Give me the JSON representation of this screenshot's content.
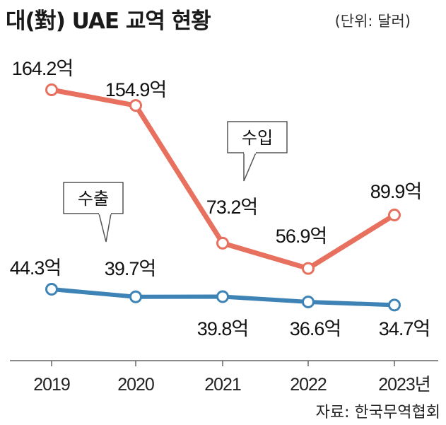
{
  "chart_data": {
    "type": "line",
    "title": "대(對) UAE 교역 현황",
    "unit": "(단위: 달러)",
    "source": "자료: 한국무역협회",
    "categories": [
      "2019",
      "2020",
      "2021",
      "2022",
      "2023년"
    ],
    "ylim": [
      0,
      180
    ],
    "grid": false,
    "series": [
      {
        "name": "수입",
        "values": [
          164.2,
          154.9,
          73.2,
          56.9,
          89.9
        ],
        "labels": [
          "164.2억",
          "154.9억",
          "73.2억",
          "56.9억",
          "89.9억"
        ],
        "color": "#e8705e"
      },
      {
        "name": "수출",
        "values": [
          44.3,
          39.7,
          39.8,
          36.6,
          34.7
        ],
        "labels": [
          "44.3억",
          "39.7억",
          "39.8억",
          "36.6억",
          "34.7억"
        ],
        "color": "#3e83b5"
      }
    ]
  }
}
